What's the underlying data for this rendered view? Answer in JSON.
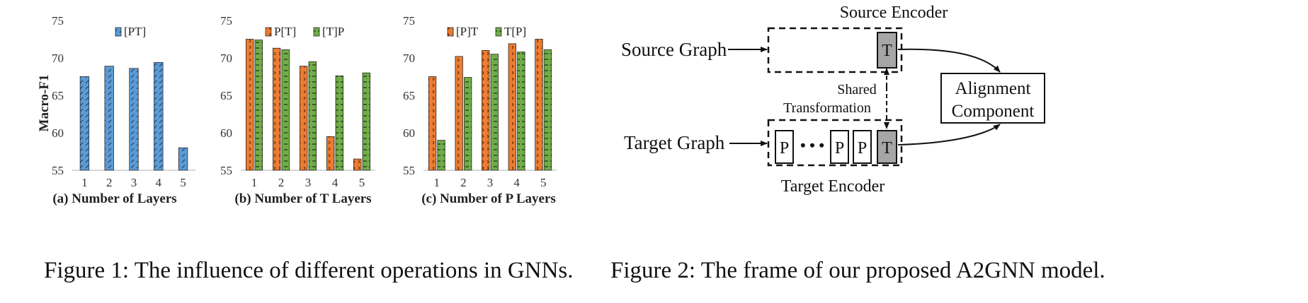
{
  "colors": {
    "blue": "#5b9bd5",
    "orange": "#ed7d31",
    "green": "#70ad47"
  },
  "figure1": {
    "caption": "Figure 1: The influence of different operations in GNNs."
  },
  "figure2": {
    "caption": "Figure 2: The frame of  our proposed A2GNN model.",
    "source_encoder": "Source Encoder",
    "target_encoder": "Target Encoder",
    "source_graph": "Source Graph",
    "target_graph": "Target Graph",
    "shared_1": "Shared",
    "shared_2": "Transformation",
    "alignment_1": "Alignment",
    "alignment_2": "Component",
    "t_box": "T",
    "p_box": "P",
    "dots": "• • •"
  },
  "chart_data": [
    {
      "type": "bar",
      "subtitle": "(a) Number of Layers",
      "ylabel": "Macro-F1",
      "ylim": [
        55,
        75
      ],
      "yticks": [
        55,
        60,
        65,
        70,
        75
      ],
      "categories": [
        "1",
        "2",
        "3",
        "4",
        "5"
      ],
      "legend_position": "top-center",
      "series": [
        {
          "name": "[PT]",
          "color": "#5b9bd5",
          "values": [
            67.5,
            68.9,
            68.6,
            69.4,
            58.0
          ]
        }
      ]
    },
    {
      "type": "bar",
      "subtitle": "(b) Number of T Layers",
      "ylim": [
        55,
        75
      ],
      "yticks": [
        55,
        60,
        65,
        70,
        75
      ],
      "categories": [
        "1",
        "2",
        "3",
        "4",
        "5"
      ],
      "legend_position": "top-center",
      "series": [
        {
          "name": "P[T]",
          "color": "#ed7d31",
          "values": [
            72.5,
            71.3,
            68.9,
            59.5,
            56.5
          ]
        },
        {
          "name": "[T]P",
          "color": "#70ad47",
          "values": [
            72.4,
            71.1,
            69.5,
            67.6,
            68.0
          ]
        }
      ]
    },
    {
      "type": "bar",
      "subtitle": "(c) Number of P Layers",
      "ylim": [
        55,
        75
      ],
      "yticks": [
        55,
        60,
        65,
        70,
        75
      ],
      "categories": [
        "1",
        "2",
        "3",
        "4",
        "5"
      ],
      "legend_position": "top-center",
      "series": [
        {
          "name": "[P]T",
          "color": "#ed7d31",
          "values": [
            67.5,
            70.2,
            71.0,
            71.9,
            72.5
          ]
        },
        {
          "name": "T[P]",
          "color": "#70ad47",
          "values": [
            59.0,
            67.4,
            70.5,
            70.8,
            71.1
          ]
        }
      ]
    }
  ]
}
